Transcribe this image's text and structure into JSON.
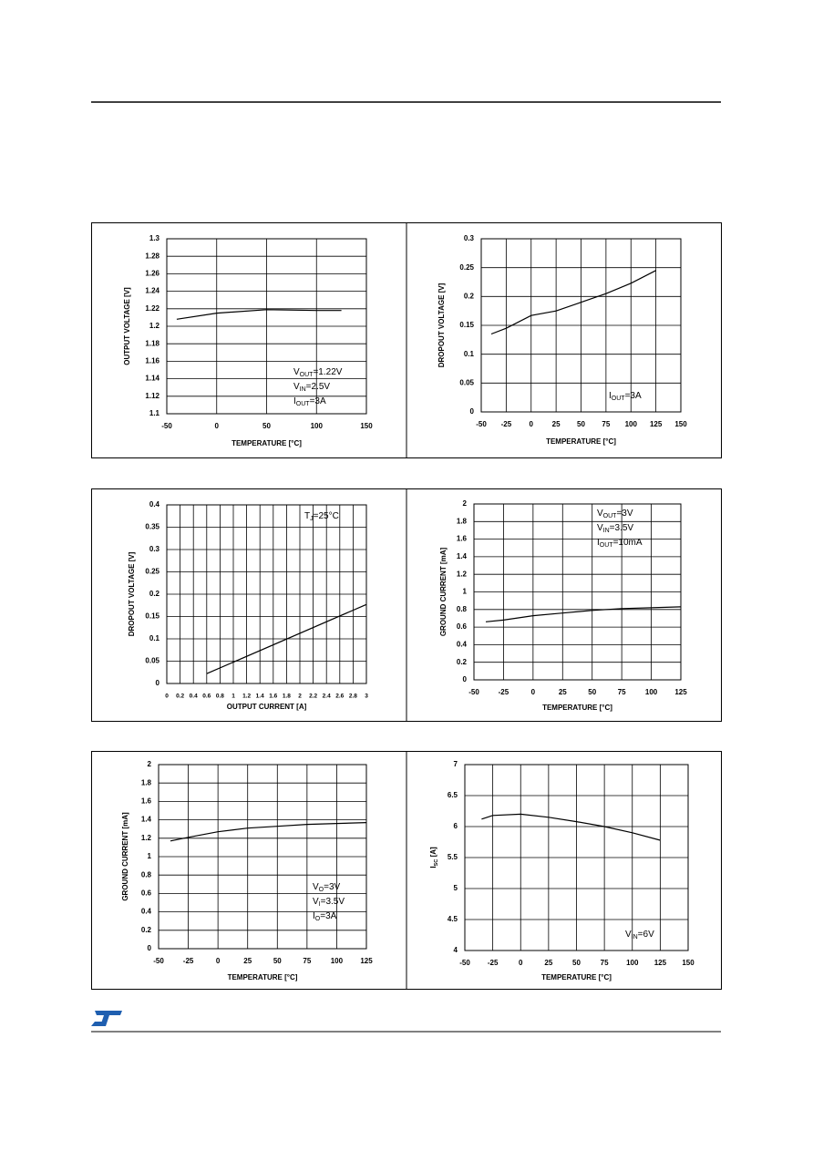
{
  "chart_data": [
    {
      "type": "line",
      "y_label": "OUTPUT VOLTAGE [V]",
      "x_label": "TEMPERATURE [°C]",
      "x": [
        -40,
        0,
        50,
        100,
        125
      ],
      "values": [
        1.208,
        1.215,
        1.219,
        1.218,
        1.218
      ],
      "color": "#000000",
      "xlim": [
        -50,
        150
      ],
      "xticks": [
        -50,
        0,
        50,
        100,
        150
      ],
      "ylim": [
        1.1,
        1.3
      ],
      "yticks": [
        1.1,
        1.12,
        1.14,
        1.16,
        1.18,
        1.2,
        1.22,
        1.24,
        1.26,
        1.28,
        1.3
      ],
      "grid": true,
      "annotations": [
        {
          "text": "V",
          "sub": "OUT",
          "tail": "=1.22V"
        },
        {
          "text": "V",
          "sub": "IN",
          "tail": "=2.5V"
        },
        {
          "text": "I",
          "sub": "OUT",
          "tail": "=3A"
        }
      ]
    },
    {
      "type": "line",
      "y_label": "DROPOUT VOLTAGE [V]",
      "x_label": "TEMPERATURE [°C]",
      "x": [
        -40,
        -25,
        0,
        25,
        50,
        75,
        100,
        125
      ],
      "values": [
        0.135,
        0.145,
        0.167,
        0.175,
        0.19,
        0.205,
        0.223,
        0.245
      ],
      "color": "#000000",
      "xlim": [
        -50,
        150
      ],
      "xticks": [
        -50,
        -25,
        0,
        25,
        50,
        75,
        100,
        125,
        150
      ],
      "ylim": [
        0,
        0.3
      ],
      "yticks": [
        0,
        0.05,
        0.1,
        0.15,
        0.2,
        0.25,
        0.3
      ],
      "grid": true,
      "annotations": [
        {
          "text": "I",
          "sub": "OUT",
          "tail": "=3A"
        }
      ]
    },
    {
      "type": "line",
      "y_label": "DROPOUT VOLTAGE [V]",
      "x_label": "OUTPUT CURRENT [A]",
      "x": [
        0.6,
        3
      ],
      "values": [
        0.022,
        0.177
      ],
      "color": "#000000",
      "xlim": [
        0,
        3
      ],
      "xticks": [
        0,
        0.2,
        0.4,
        0.6,
        0.8,
        1,
        1.2,
        1.4,
        1.6,
        1.8,
        2,
        2.2,
        2.4,
        2.6,
        2.8,
        3
      ],
      "ylim": [
        0,
        0.4
      ],
      "yticks": [
        0,
        0.05,
        0.1,
        0.15,
        0.2,
        0.25,
        0.3,
        0.35,
        0.4
      ],
      "grid": true,
      "annotations": [
        {
          "text": "T",
          "sub": "J",
          "tail": "=25°C"
        }
      ]
    },
    {
      "type": "line",
      "y_label": "GROUND CURRENT [mA]",
      "x_label": "TEMPERATURE [°C]",
      "x": [
        -40,
        -25,
        0,
        25,
        50,
        75,
        100,
        125
      ],
      "values": [
        0.66,
        0.68,
        0.73,
        0.76,
        0.79,
        0.81,
        0.82,
        0.83
      ],
      "color": "#000000",
      "xlim": [
        -50,
        125
      ],
      "xticks": [
        -50,
        -25,
        0,
        25,
        50,
        75,
        100,
        125
      ],
      "ylim": [
        0,
        2
      ],
      "yticks": [
        0,
        0.2,
        0.4,
        0.6,
        0.8,
        1,
        1.2,
        1.4,
        1.6,
        1.8,
        2
      ],
      "grid": true,
      "annotations": [
        {
          "text": "V",
          "sub": "OUT",
          "tail": "=3V"
        },
        {
          "text": "V",
          "sub": "IN",
          "tail": "=3.5V"
        },
        {
          "text": "I",
          "sub": "OUT",
          "tail": "=10mA"
        }
      ]
    },
    {
      "type": "line",
      "y_label": "GROUND CURRENT [mA]",
      "x_label": "TEMPERATURE [°C]",
      "x": [
        -40,
        -25,
        0,
        25,
        50,
        75,
        100,
        125
      ],
      "values": [
        1.17,
        1.21,
        1.27,
        1.31,
        1.33,
        1.35,
        1.36,
        1.37
      ],
      "color": "#000000",
      "xlim": [
        -50,
        125
      ],
      "xticks": [
        -50,
        -25,
        0,
        25,
        50,
        75,
        100,
        125
      ],
      "ylim": [
        0,
        2
      ],
      "yticks": [
        0,
        0.2,
        0.4,
        0.6,
        0.8,
        1,
        1.2,
        1.4,
        1.6,
        1.8,
        2
      ],
      "grid": true,
      "annotations": [
        {
          "text": "V",
          "sub": "O",
          "tail": "=3V"
        },
        {
          "text": "V",
          "sub": "I",
          "tail": "=3.5V"
        },
        {
          "text": "I",
          "sub": "O",
          "tail": "=3A"
        }
      ]
    },
    {
      "type": "line",
      "y_label": {
        "text": "I",
        "sub": "SC",
        "tail": " [A]"
      },
      "x_label": "TEMPERATURE [°C]",
      "x": [
        -35,
        -25,
        0,
        25,
        50,
        75,
        100,
        125
      ],
      "values": [
        6.12,
        6.18,
        6.2,
        6.15,
        6.08,
        6.0,
        5.9,
        5.78
      ],
      "color": "#000000",
      "xlim": [
        -50,
        150
      ],
      "xticks": [
        -50,
        -25,
        0,
        25,
        50,
        75,
        100,
        125,
        150
      ],
      "ylim": [
        4,
        7
      ],
      "yticks": [
        4,
        4.5,
        5,
        5.5,
        6,
        6.5,
        7
      ],
      "grid": true,
      "annotations": [
        {
          "text": "V",
          "sub": "IN",
          "tail": "=6V"
        }
      ]
    }
  ]
}
